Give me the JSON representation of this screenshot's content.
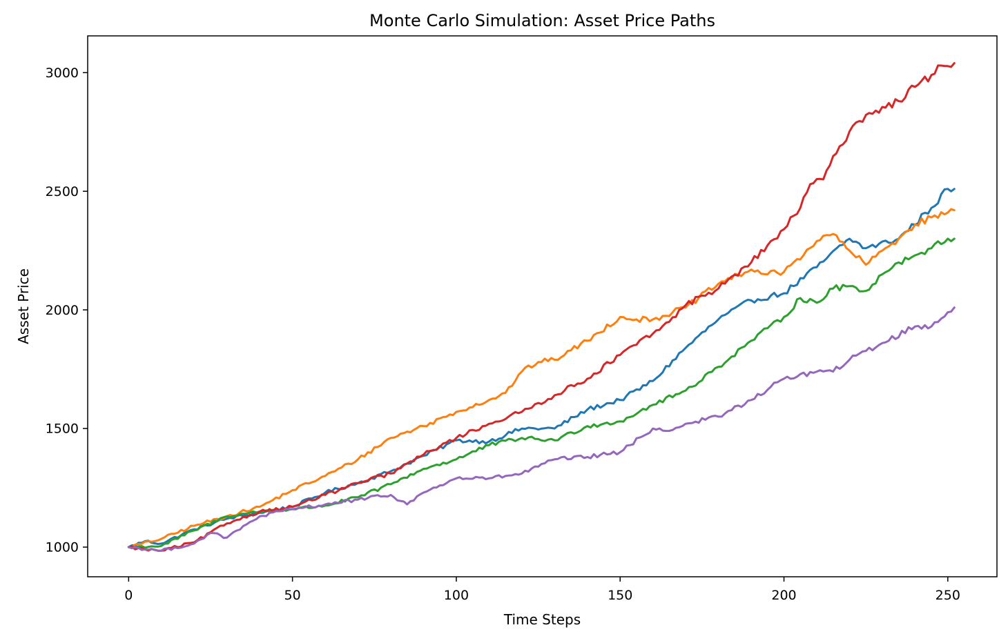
{
  "chart_data": {
    "type": "line",
    "title": "Monte Carlo Simulation: Asset Price Paths",
    "xlabel": "Time Steps",
    "ylabel": "Asset Price",
    "xlim": [
      -12.5,
      265
    ],
    "ylim": [
      875,
      3155
    ],
    "xticks": [
      0,
      50,
      100,
      150,
      200,
      250
    ],
    "yticks": [
      1000,
      1500,
      2000,
      2500,
      3000
    ],
    "grid": false,
    "legend": false,
    "series": [
      {
        "color": "#1f77b4",
        "anchors": [
          [
            0,
            1000
          ],
          [
            5,
            1025
          ],
          [
            10,
            1015
          ],
          [
            20,
            1075
          ],
          [
            30,
            1120
          ],
          [
            40,
            1145
          ],
          [
            50,
            1170
          ],
          [
            60,
            1230
          ],
          [
            70,
            1270
          ],
          [
            80,
            1320
          ],
          [
            90,
            1385
          ],
          [
            100,
            1450
          ],
          [
            110,
            1445
          ],
          [
            120,
            1500
          ],
          [
            130,
            1500
          ],
          [
            140,
            1580
          ],
          [
            150,
            1620
          ],
          [
            160,
            1700
          ],
          [
            170,
            1840
          ],
          [
            180,
            1960
          ],
          [
            190,
            2040
          ],
          [
            200,
            2070
          ],
          [
            210,
            2180
          ],
          [
            220,
            2300
          ],
          [
            225,
            2260
          ],
          [
            235,
            2300
          ],
          [
            245,
            2430
          ],
          [
            250,
            2510
          ],
          [
            252,
            2510
          ]
        ]
      },
      {
        "color": "#ff7f0e",
        "anchors": [
          [
            0,
            1000
          ],
          [
            10,
            1035
          ],
          [
            20,
            1090
          ],
          [
            30,
            1130
          ],
          [
            40,
            1170
          ],
          [
            50,
            1240
          ],
          [
            60,
            1300
          ],
          [
            70,
            1370
          ],
          [
            80,
            1460
          ],
          [
            90,
            1510
          ],
          [
            100,
            1570
          ],
          [
            110,
            1620
          ],
          [
            115,
            1650
          ],
          [
            120,
            1740
          ],
          [
            125,
            1780
          ],
          [
            130,
            1790
          ],
          [
            140,
            1870
          ],
          [
            150,
            1970
          ],
          [
            155,
            1960
          ],
          [
            160,
            1960
          ],
          [
            170,
            2010
          ],
          [
            180,
            2110
          ],
          [
            190,
            2170
          ],
          [
            195,
            2150
          ],
          [
            200,
            2160
          ],
          [
            210,
            2290
          ],
          [
            215,
            2320
          ],
          [
            220,
            2250
          ],
          [
            225,
            2190
          ],
          [
            230,
            2250
          ],
          [
            235,
            2300
          ],
          [
            240,
            2360
          ],
          [
            245,
            2390
          ],
          [
            250,
            2410
          ],
          [
            252,
            2420
          ]
        ]
      },
      {
        "color": "#2ca02c",
        "anchors": [
          [
            0,
            1000
          ],
          [
            10,
            1005
          ],
          [
            20,
            1070
          ],
          [
            30,
            1130
          ],
          [
            40,
            1150
          ],
          [
            50,
            1160
          ],
          [
            60,
            1175
          ],
          [
            70,
            1210
          ],
          [
            80,
            1265
          ],
          [
            90,
            1330
          ],
          [
            100,
            1370
          ],
          [
            110,
            1430
          ],
          [
            120,
            1460
          ],
          [
            130,
            1450
          ],
          [
            140,
            1510
          ],
          [
            150,
            1530
          ],
          [
            160,
            1600
          ],
          [
            170,
            1660
          ],
          [
            180,
            1760
          ],
          [
            190,
            1870
          ],
          [
            200,
            1970
          ],
          [
            205,
            2050
          ],
          [
            210,
            2030
          ],
          [
            215,
            2090
          ],
          [
            220,
            2100
          ],
          [
            225,
            2080
          ],
          [
            230,
            2150
          ],
          [
            235,
            2200
          ],
          [
            240,
            2230
          ],
          [
            245,
            2260
          ],
          [
            250,
            2300
          ],
          [
            252,
            2300
          ]
        ]
      },
      {
        "color": "#d62728",
        "anchors": [
          [
            0,
            1000
          ],
          [
            5,
            990
          ],
          [
            10,
            985
          ],
          [
            20,
            1020
          ],
          [
            30,
            1100
          ],
          [
            40,
            1150
          ],
          [
            50,
            1170
          ],
          [
            60,
            1220
          ],
          [
            70,
            1270
          ],
          [
            80,
            1310
          ],
          [
            90,
            1390
          ],
          [
            100,
            1460
          ],
          [
            110,
            1520
          ],
          [
            120,
            1570
          ],
          [
            130,
            1640
          ],
          [
            140,
            1710
          ],
          [
            150,
            1810
          ],
          [
            160,
            1900
          ],
          [
            165,
            1950
          ],
          [
            170,
            2020
          ],
          [
            175,
            2060
          ],
          [
            180,
            2090
          ],
          [
            190,
            2200
          ],
          [
            200,
            2340
          ],
          [
            205,
            2430
          ],
          [
            208,
            2530
          ],
          [
            212,
            2550
          ],
          [
            217,
            2690
          ],
          [
            222,
            2790
          ],
          [
            228,
            2840
          ],
          [
            235,
            2880
          ],
          [
            240,
            2940
          ],
          [
            245,
            2990
          ],
          [
            248,
            3030
          ],
          [
            252,
            3040
          ]
        ]
      },
      {
        "color": "#9467bd",
        "anchors": [
          [
            0,
            1000
          ],
          [
            10,
            985
          ],
          [
            20,
            1015
          ],
          [
            25,
            1060
          ],
          [
            30,
            1040
          ],
          [
            40,
            1130
          ],
          [
            50,
            1160
          ],
          [
            60,
            1180
          ],
          [
            70,
            1200
          ],
          [
            80,
            1220
          ],
          [
            85,
            1180
          ],
          [
            90,
            1230
          ],
          [
            100,
            1290
          ],
          [
            110,
            1290
          ],
          [
            120,
            1310
          ],
          [
            130,
            1370
          ],
          [
            140,
            1380
          ],
          [
            150,
            1400
          ],
          [
            160,
            1500
          ],
          [
            165,
            1490
          ],
          [
            170,
            1520
          ],
          [
            180,
            1550
          ],
          [
            190,
            1620
          ],
          [
            200,
            1710
          ],
          [
            210,
            1740
          ],
          [
            215,
            1740
          ],
          [
            220,
            1790
          ],
          [
            230,
            1860
          ],
          [
            240,
            1930
          ],
          [
            245,
            1930
          ],
          [
            250,
            1990
          ],
          [
            252,
            2010
          ]
        ]
      }
    ]
  }
}
